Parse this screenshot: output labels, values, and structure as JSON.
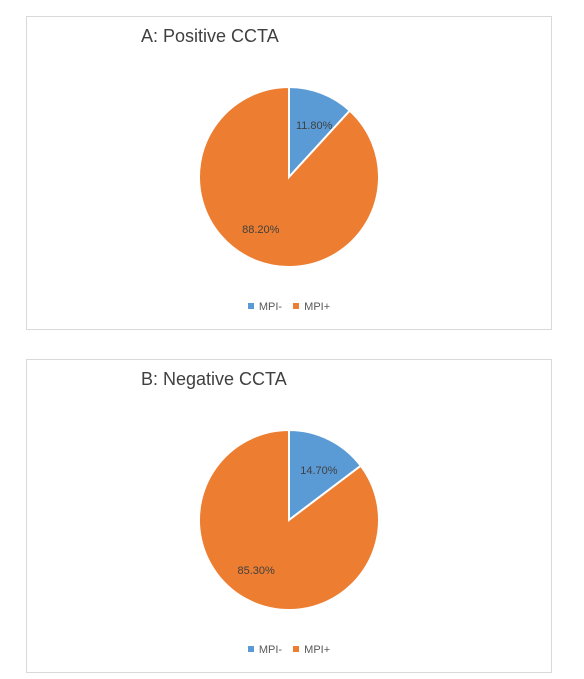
{
  "chart_data": [
    {
      "type": "pie",
      "title": "A: Positive CCTA",
      "categories": [
        "MPI-",
        "MPI+"
      ],
      "values": [
        11.8,
        88.2
      ],
      "labels": [
        "11.80%",
        "88.20%"
      ],
      "colors": [
        "#5b9bd5",
        "#ed7d31"
      ],
      "legend": "bottom"
    },
    {
      "type": "pie",
      "title": "B: Negative CCTA",
      "categories": [
        "MPI-",
        "MPI+"
      ],
      "values": [
        14.7,
        85.3
      ],
      "labels": [
        "14.70%",
        "85.30%"
      ],
      "colors": [
        "#5b9bd5",
        "#ed7d31"
      ],
      "legend": "bottom"
    }
  ]
}
